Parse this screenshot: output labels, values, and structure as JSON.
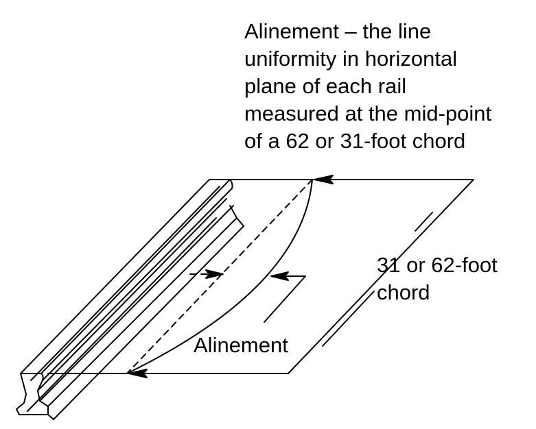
{
  "title_lines": [
    "Alinement – the line",
    "uniformity in horizontal",
    "plane of each rail",
    "measured at the mid-point",
    "of a 62 or 31-foot chord"
  ],
  "chord_label_lines": [
    "31 or 62-foot",
    "chord"
  ],
  "alinement_label": "Alinement",
  "colors": {
    "ink": "#000000",
    "background": "#ffffff"
  }
}
